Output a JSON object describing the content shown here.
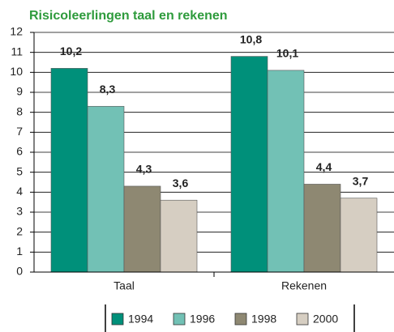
{
  "chart_data": {
    "type": "bar",
    "title": "Risicoleerlingen taal en rekenen",
    "categories": [
      "Taal",
      "Rekenen"
    ],
    "series": [
      {
        "name": "1994",
        "color": "#00907a",
        "values": [
          10.2,
          10.8
        ],
        "value_labels": [
          "10,2",
          "10,8"
        ]
      },
      {
        "name": "1996",
        "color": "#72c1b5",
        "values": [
          8.3,
          10.1
        ],
        "value_labels": [
          "8,3",
          "10,1"
        ]
      },
      {
        "name": "1998",
        "color": "#8e8872",
        "values": [
          4.3,
          4.4
        ],
        "value_labels": [
          "4,3",
          "4,4"
        ]
      },
      {
        "name": "2000",
        "color": "#d6cec2",
        "values": [
          3.6,
          3.7
        ],
        "value_labels": [
          "3,6",
          "3,7"
        ]
      }
    ],
    "ylim": [
      0,
      12
    ],
    "yticks": [
      0,
      1,
      2,
      3,
      4,
      5,
      6,
      7,
      8,
      9,
      10,
      11,
      12
    ],
    "grid": true,
    "legend": "bottom"
  }
}
